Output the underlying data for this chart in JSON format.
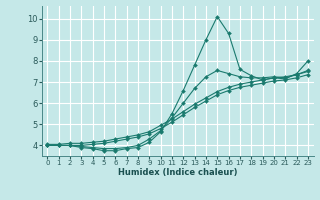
{
  "xlabel": "Humidex (Indice chaleur)",
  "bg_color": "#c5e8e8",
  "grid_color": "#ffffff",
  "line_color": "#1a7a6e",
  "xlim": [
    -0.5,
    23.5
  ],
  "ylim": [
    3.5,
    10.6
  ],
  "xticks": [
    0,
    1,
    2,
    3,
    4,
    5,
    6,
    7,
    8,
    9,
    10,
    11,
    12,
    13,
    14,
    15,
    16,
    17,
    18,
    19,
    20,
    21,
    22,
    23
  ],
  "yticks": [
    4,
    5,
    6,
    7,
    8,
    9,
    10
  ],
  "series": [
    {
      "x": [
        0,
        1,
        2,
        3,
        4,
        5,
        6,
        7,
        8,
        9,
        10,
        11,
        12,
        13,
        14,
        15,
        16,
        17,
        18,
        19,
        20,
        21,
        22,
        23
      ],
      "y": [
        4.0,
        4.0,
        4.0,
        3.9,
        3.85,
        3.75,
        3.75,
        3.85,
        3.9,
        4.15,
        4.65,
        5.5,
        6.6,
        7.8,
        9.0,
        10.1,
        9.3,
        7.6,
        7.3,
        7.1,
        7.2,
        7.15,
        7.4,
        8.0
      ]
    },
    {
      "x": [
        0,
        1,
        2,
        3,
        4,
        5,
        6,
        7,
        8,
        9,
        10,
        11,
        12,
        13,
        14,
        15,
        16,
        17,
        18,
        19,
        20,
        21,
        22,
        23
      ],
      "y": [
        4.0,
        4.0,
        4.0,
        4.0,
        4.05,
        4.1,
        4.2,
        4.3,
        4.4,
        4.55,
        4.8,
        5.1,
        5.45,
        5.8,
        6.1,
        6.4,
        6.6,
        6.75,
        6.85,
        6.95,
        7.05,
        7.1,
        7.2,
        7.35
      ]
    },
    {
      "x": [
        0,
        1,
        2,
        3,
        4,
        5,
        6,
        7,
        8,
        9,
        10,
        11,
        12,
        13,
        14,
        15,
        16,
        17,
        18,
        19,
        20,
        21,
        22,
        23
      ],
      "y": [
        4.05,
        4.05,
        4.1,
        4.1,
        4.15,
        4.2,
        4.3,
        4.4,
        4.5,
        4.65,
        4.95,
        5.25,
        5.6,
        5.95,
        6.25,
        6.55,
        6.75,
        6.9,
        7.0,
        7.1,
        7.2,
        7.25,
        7.35,
        7.5
      ]
    },
    {
      "x": [
        0,
        1,
        2,
        3,
        4,
        5,
        6,
        7,
        8,
        9,
        10,
        11,
        12,
        13,
        14,
        15,
        16,
        17,
        18,
        19,
        20,
        21,
        22,
        23
      ],
      "y": [
        4.0,
        4.0,
        4.0,
        3.95,
        3.9,
        3.85,
        3.85,
        3.9,
        4.0,
        4.3,
        4.7,
        5.3,
        6.0,
        6.7,
        7.25,
        7.55,
        7.4,
        7.25,
        7.2,
        7.2,
        7.25,
        7.2,
        7.35,
        7.55
      ]
    }
  ]
}
